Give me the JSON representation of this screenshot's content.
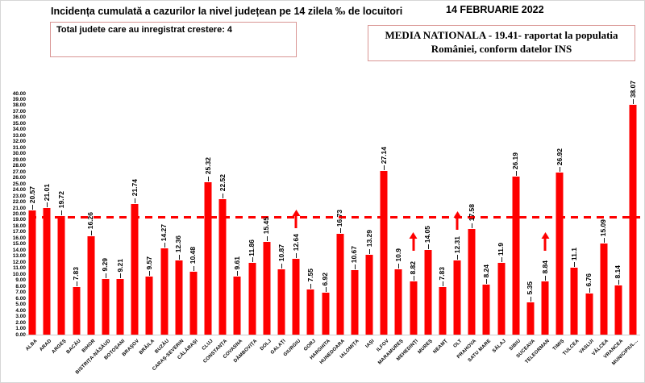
{
  "header": {
    "title": "Incidența cumulată a cazurilor la nivel județean pe 14 zilela ‰ de locuitori",
    "date": "14 FEBRUARIE 2022",
    "growth_box": "Total judete care au inregistrat crestere: 4",
    "national_box_line1": "MEDIA NATIONALA - 19.41-  raportat la populatia",
    "national_box_line2": "României, conform datelor INS"
  },
  "colors": {
    "bar": "#fe0000",
    "dashed_line": "#fe0000",
    "box_border": "#d99694",
    "text": "#000000"
  },
  "chart_data": {
    "type": "bar",
    "title": "Incidența cumulată a cazurilor la nivel județean pe 14 zilela ‰ de locuitori",
    "xlabel": "",
    "ylabel": "",
    "ylim": [
      0,
      40
    ],
    "grid": false,
    "legend": "none",
    "national_average": 19.41,
    "y_axis": {
      "min": 0,
      "max": 40,
      "step": 1,
      "decimals": 2
    },
    "categories": [
      "ALBA",
      "ARAD",
      "ARGEȘ",
      "BACĂU",
      "BIHOR",
      "BISTRIȚA-NĂSĂUD",
      "BOTOȘANI",
      "BRAȘOV",
      "BRĂILA",
      "BUZĂU",
      "CARAȘ-SEVERIN",
      "CĂLĂRAȘI",
      "CLUJ",
      "CONSTANȚA",
      "COVASNA",
      "DÂMBOVIȚA",
      "DOLJ",
      "GALAȚI",
      "GIURGIU",
      "GORJ",
      "HARGHITA",
      "HUNEDOARA",
      "IALOMIȚA",
      "IAȘI",
      "ILFOV",
      "MARAMUREȘ",
      "MEHEDINȚI",
      "MUREȘ",
      "NEAMȚ",
      "OLT",
      "PRAHOVA",
      "SATU MARE",
      "SĂLAJ",
      "SIBIU",
      "SUCEAVA",
      "TELEORMAN",
      "TIMIȘ",
      "TULCEA",
      "VASLUI",
      "VÂLCEA",
      "VRANCEA",
      "MUNICIPIUL..."
    ],
    "values": [
      20.57,
      21.01,
      19.72,
      7.83,
      16.26,
      9.29,
      9.21,
      21.74,
      9.57,
      14.27,
      12.36,
      10.48,
      25.32,
      22.52,
      9.61,
      11.86,
      15.45,
      10.87,
      12.64,
      7.55,
      6.92,
      16.73,
      10.67,
      13.29,
      27.14,
      10.9,
      8.82,
      14.05,
      7.83,
      12.31,
      17.58,
      8.24,
      11.9,
      26.19,
      5.35,
      8.84,
      26.92,
      11.1,
      6.76,
      15.09,
      8.14,
      38.07
    ],
    "increase_markers": [
      "GIURGIU",
      "MEHEDINȚI",
      "OLT",
      "TELEORMAN"
    ]
  }
}
